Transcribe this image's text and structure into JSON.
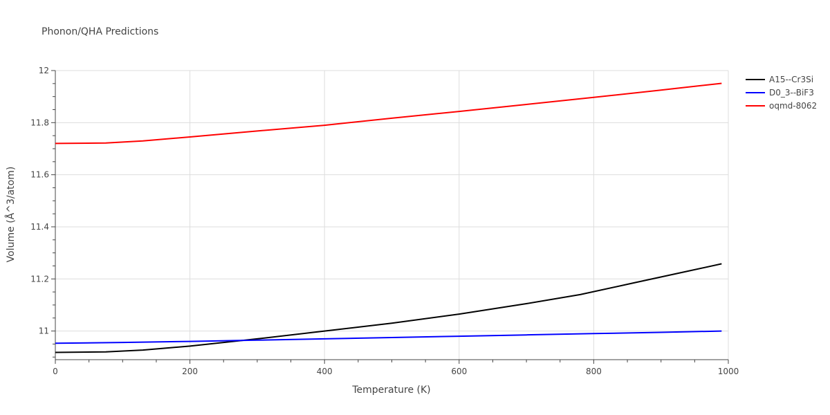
{
  "chart_data": {
    "type": "line",
    "title": "Phonon/QHA Predictions",
    "xlabel": "Temperature (K)",
    "ylabel": "Volume (Å^3/atom)",
    "xlim": [
      0,
      1000
    ],
    "ylim": [
      10.89,
      12.0
    ],
    "xticks": [
      0,
      200,
      400,
      600,
      800,
      1000
    ],
    "xtick_labels": [
      "0",
      "200",
      "400",
      "600",
      "800",
      "1000"
    ],
    "yticks": [
      11.0,
      11.2,
      11.4,
      11.6,
      11.8,
      12.0
    ],
    "ytick_labels": [
      "11",
      "11.2",
      "11.4",
      "11.6",
      "11.8",
      "12"
    ],
    "grid": true,
    "legend_position": "top-right",
    "series": [
      {
        "name": "A15--Cr3Si",
        "color": "#000000",
        "x": [
          0,
          75,
          130,
          200,
          300,
          400,
          500,
          600,
          700,
          780,
          860,
          940,
          990
        ],
        "y": [
          10.918,
          10.92,
          10.927,
          10.942,
          10.97,
          11.0,
          11.03,
          11.065,
          11.105,
          11.14,
          11.185,
          11.23,
          11.258
        ]
      },
      {
        "name": "D0_3--BiF3",
        "color": "#0000ff",
        "x": [
          0,
          100,
          200,
          300,
          400,
          500,
          600,
          700,
          800,
          900,
          990
        ],
        "y": [
          10.953,
          10.956,
          10.96,
          10.965,
          10.97,
          10.975,
          10.98,
          10.985,
          10.99,
          10.995,
          11.0
        ]
      },
      {
        "name": "oqmd-8062",
        "color": "#ff0000",
        "x": [
          0,
          75,
          130,
          200,
          300,
          400,
          500,
          600,
          700,
          800,
          900,
          990
        ],
        "y": [
          11.72,
          11.722,
          11.73,
          11.745,
          11.768,
          11.79,
          11.817,
          11.843,
          11.87,
          11.897,
          11.925,
          11.951
        ]
      }
    ]
  }
}
